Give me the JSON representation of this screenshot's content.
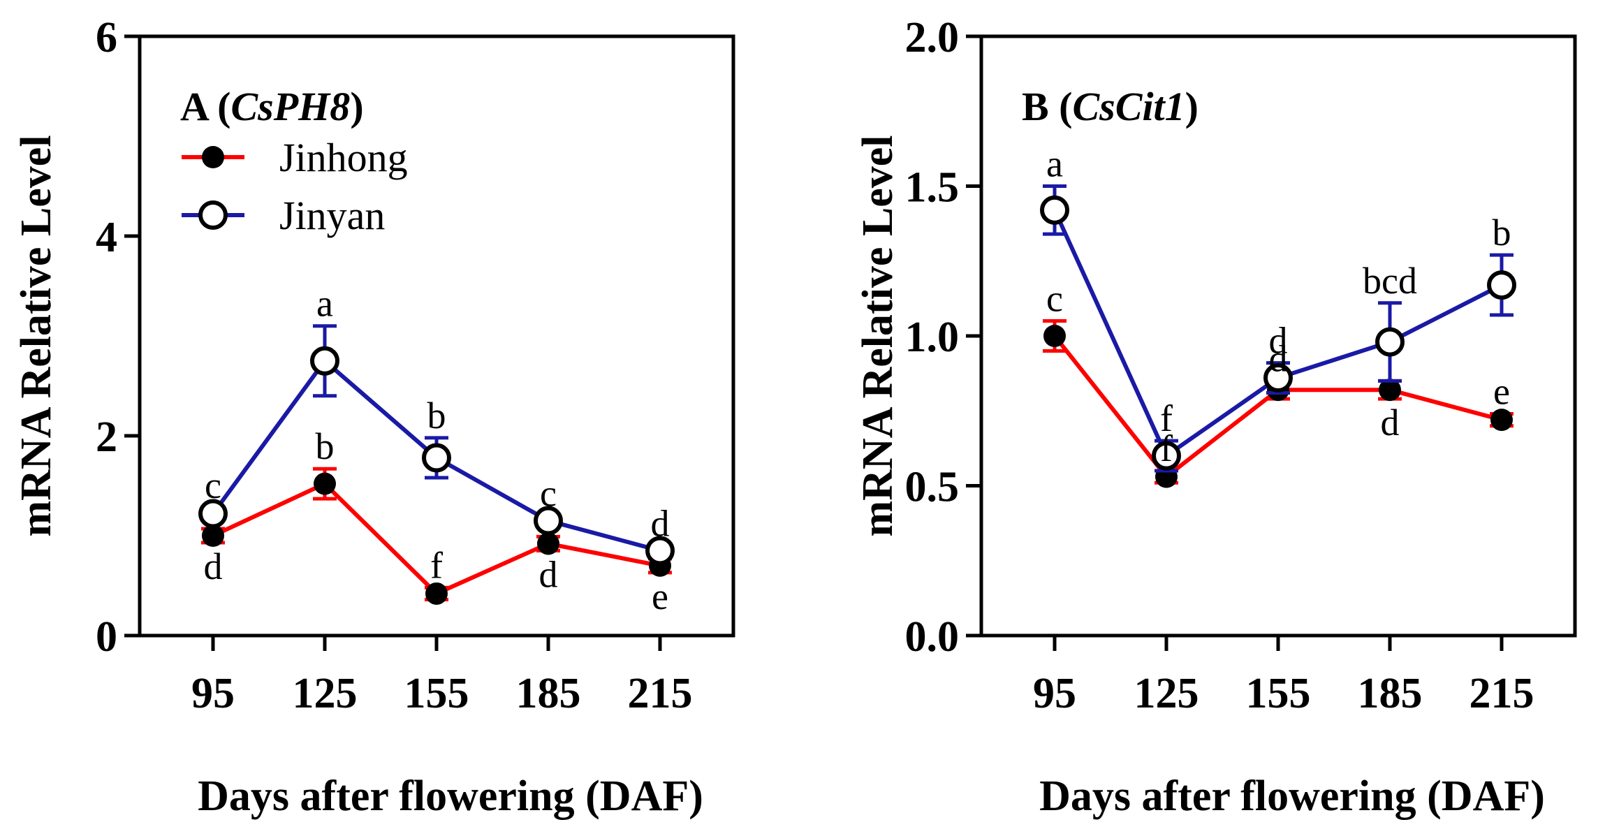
{
  "chart_data": [
    {
      "type": "line",
      "panel_letter": "A",
      "gene": "CsPH8",
      "x": [
        95,
        125,
        155,
        185,
        215
      ],
      "xlabel": "Days after flowering (DAF)",
      "ylabel": "mRNA Relative Level",
      "ylim": [
        0,
        6
      ],
      "yticks": [
        0,
        2,
        4,
        6
      ],
      "ytick_labels": [
        "0",
        "2",
        "4",
        "6"
      ],
      "grid": false,
      "legend_position": "top-left",
      "series": [
        {
          "name": "Jinhong",
          "color": "#ff0000",
          "marker": "filled-circle",
          "values": [
            1.0,
            1.52,
            0.42,
            0.92,
            0.7
          ],
          "errors": [
            0.07,
            0.15,
            0.06,
            0.07,
            0.07
          ],
          "letters": [
            "d",
            "b",
            "f",
            "d",
            "e"
          ],
          "letter_side": [
            "below",
            "above",
            "above",
            "below",
            "below"
          ]
        },
        {
          "name": "Jinyan",
          "color": "#1a1aa6",
          "marker": "open-circle",
          "values": [
            1.22,
            2.75,
            1.78,
            1.15,
            0.85
          ],
          "errors": [
            0.06,
            0.35,
            0.2,
            0.05,
            0.05
          ],
          "letters": [
            "c",
            "a",
            "b",
            "c",
            "d"
          ],
          "letter_side": [
            "above",
            "above",
            "above",
            "above",
            "above"
          ]
        }
      ]
    },
    {
      "type": "line",
      "panel_letter": "B",
      "gene": "CsCit1",
      "x": [
        95,
        125,
        155,
        185,
        215
      ],
      "xlabel": "Days after flowering (DAF)",
      "ylabel": "mRNA Relative Level",
      "ylim": [
        0,
        2.0
      ],
      "yticks": [
        0,
        0.5,
        1.0,
        1.5,
        2.0
      ],
      "ytick_labels": [
        "0.0",
        "0.5",
        "1.0",
        "1.5",
        "2.0"
      ],
      "grid": false,
      "series": [
        {
          "name": "Jinhong",
          "color": "#ff0000",
          "marker": "filled-circle",
          "values": [
            1.0,
            0.53,
            0.82,
            0.82,
            0.72
          ],
          "errors": [
            0.05,
            0.02,
            0.03,
            0.03,
            0.02
          ],
          "letters": [
            "c",
            "f",
            "d",
            "d",
            "e"
          ],
          "letter_side": [
            "above",
            "above",
            "above",
            "below",
            "above"
          ]
        },
        {
          "name": "Jinyan",
          "color": "#1a1aa6",
          "marker": "open-circle",
          "values": [
            1.42,
            0.6,
            0.86,
            0.98,
            1.17
          ],
          "errors": [
            0.08,
            0.05,
            0.05,
            0.13,
            0.1
          ],
          "letters": [
            "a",
            "f",
            "d",
            "bcd",
            "b"
          ],
          "letter_side": [
            "above",
            "above",
            "above",
            "above",
            "above"
          ]
        }
      ]
    }
  ]
}
